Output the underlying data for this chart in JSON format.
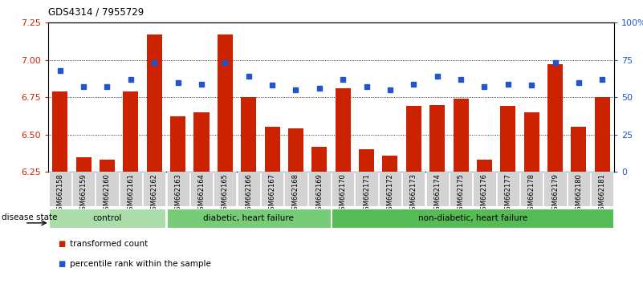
{
  "title": "GDS4314 / 7955729",
  "samples": [
    "GSM662158",
    "GSM662159",
    "GSM662160",
    "GSM662161",
    "GSM662162",
    "GSM662163",
    "GSM662164",
    "GSM662165",
    "GSM662166",
    "GSM662167",
    "GSM662168",
    "GSM662169",
    "GSM662170",
    "GSM662171",
    "GSM662172",
    "GSM662173",
    "GSM662174",
    "GSM662175",
    "GSM662176",
    "GSM662177",
    "GSM662178",
    "GSM662179",
    "GSM662180",
    "GSM662181"
  ],
  "bar_values": [
    6.79,
    6.35,
    6.33,
    6.79,
    7.17,
    6.62,
    6.65,
    7.17,
    6.75,
    6.55,
    6.54,
    6.42,
    6.81,
    6.4,
    6.36,
    6.69,
    6.7,
    6.74,
    6.33,
    6.69,
    6.65,
    6.97,
    6.55,
    6.75
  ],
  "dot_values": [
    68,
    57,
    57,
    62,
    73,
    60,
    59,
    73,
    64,
    58,
    55,
    56,
    62,
    57,
    55,
    59,
    64,
    62,
    57,
    59,
    58,
    73,
    60,
    62
  ],
  "ylim_left": [
    6.25,
    7.25
  ],
  "ylim_right": [
    0,
    100
  ],
  "yticks_left": [
    6.25,
    6.5,
    6.75,
    7.0,
    7.25
  ],
  "yticks_right": [
    0,
    25,
    50,
    75,
    100
  ],
  "ytick_labels_right": [
    "0",
    "25",
    "50",
    "75",
    "100%"
  ],
  "bar_color": "#cc2200",
  "dot_color": "#2255cc",
  "groups": [
    {
      "label": "control",
      "start": 0,
      "end": 5,
      "color": "#aaddaa"
    },
    {
      "label": "diabetic, heart failure",
      "start": 5,
      "end": 12,
      "color": "#77cc77"
    },
    {
      "label": "non-diabetic, heart failure",
      "start": 12,
      "end": 24,
      "color": "#55bb55"
    }
  ],
  "legend_items": [
    {
      "label": "transformed count",
      "color": "#cc2200"
    },
    {
      "label": "percentile rank within the sample",
      "color": "#2255cc"
    }
  ],
  "disease_state_label": "disease state"
}
